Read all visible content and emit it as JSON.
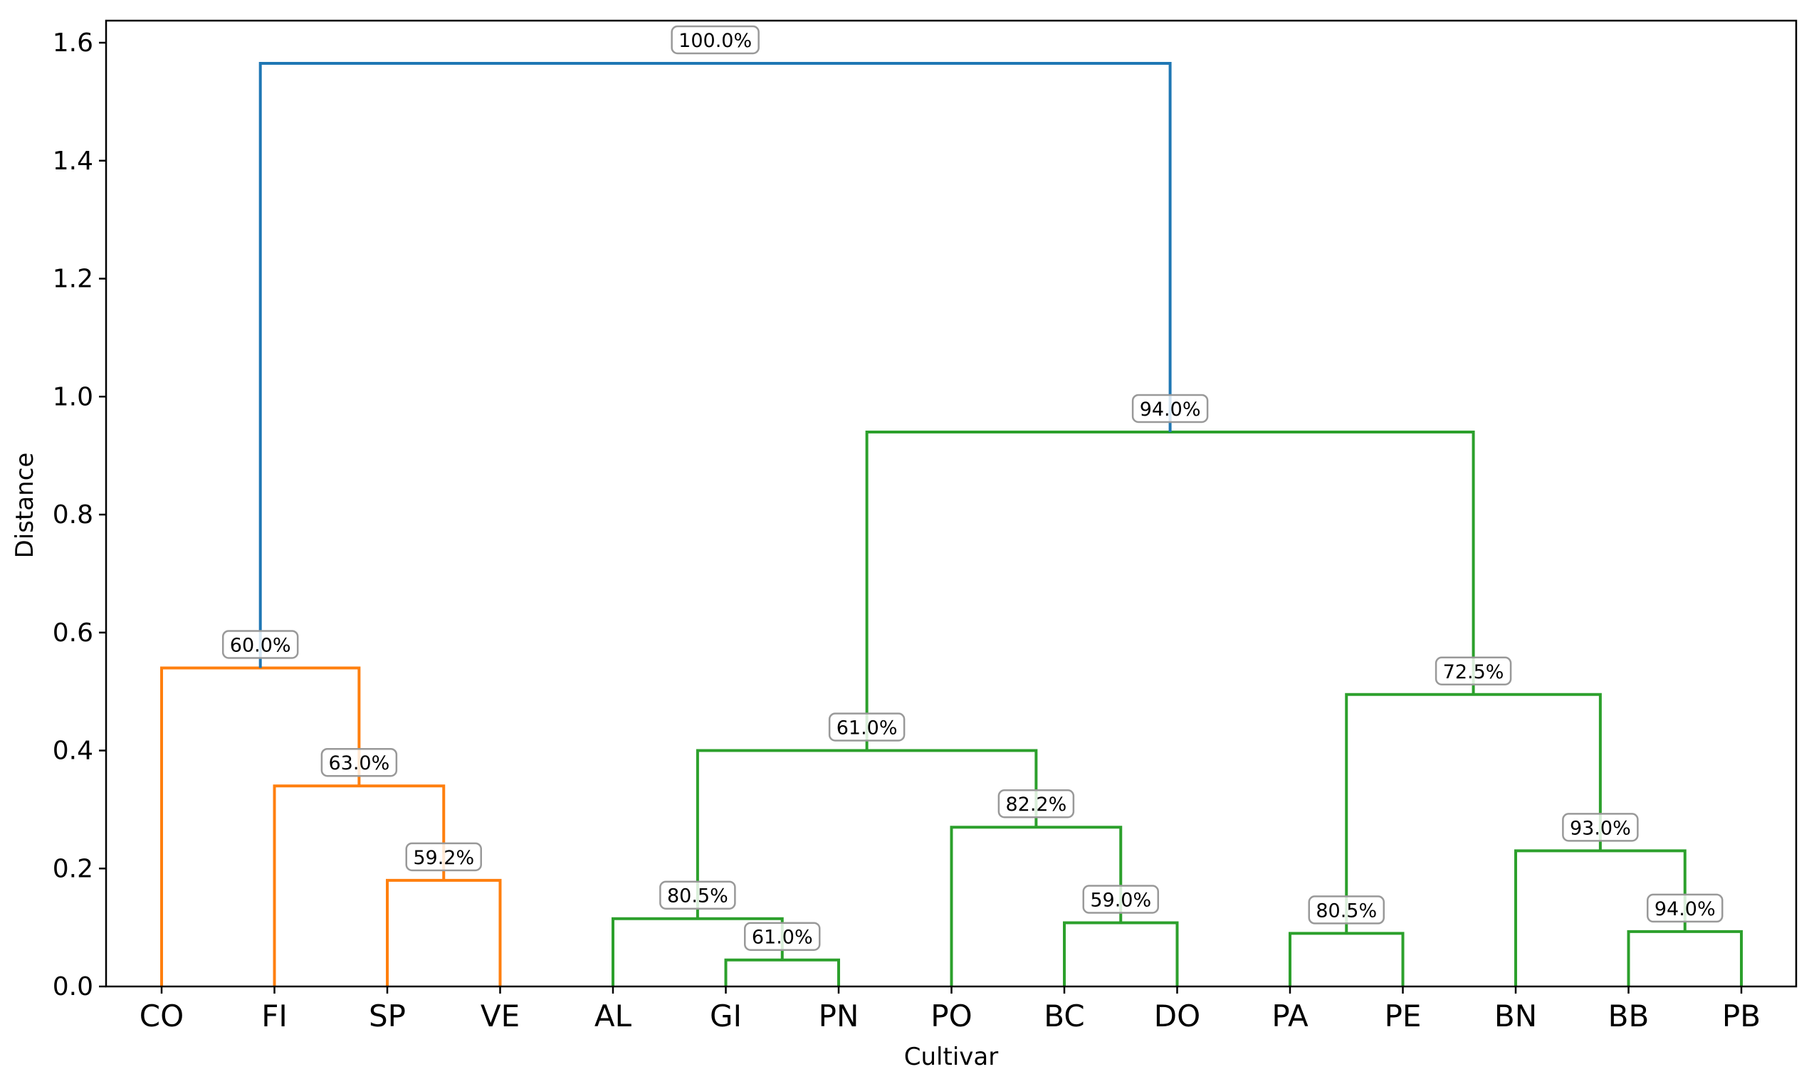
{
  "chart_data": {
    "type": "dendrogram",
    "title": "",
    "xlabel": "Cultivar",
    "ylabel": "Distance",
    "ylim": [
      0,
      1.64
    ],
    "yticks": [
      "0.0",
      "0.2",
      "0.4",
      "0.6",
      "0.8",
      "1.0",
      "1.2",
      "1.4",
      "1.6"
    ],
    "grid": false,
    "leaves": [
      "CO",
      "FI",
      "SP",
      "VE",
      "AL",
      "GI",
      "PN",
      "PO",
      "BC",
      "DO",
      "PA",
      "PE",
      "BN",
      "BB",
      "PB"
    ],
    "colors": {
      "top": "#1f77b4",
      "orange": "#ff7f0e",
      "green": "#2ca02c"
    },
    "clusters": [
      {
        "id": "c1",
        "left": "SP",
        "right": "VE",
        "height": 0.18,
        "label": "59.2%",
        "color": "orange"
      },
      {
        "id": "c2",
        "left": "FI",
        "right": "c1",
        "height": 0.34,
        "label": "63.0%",
        "color": "orange"
      },
      {
        "id": "c3",
        "left": "CO",
        "right": "c2",
        "height": 0.54,
        "label": "60.0%",
        "color": "orange"
      },
      {
        "id": "c4",
        "left": "GI",
        "right": "PN",
        "height": 0.045,
        "label": "61.0%",
        "color": "green"
      },
      {
        "id": "c5",
        "left": "AL",
        "right": "c4",
        "height": 0.115,
        "label": "80.5%",
        "color": "green"
      },
      {
        "id": "c6",
        "left": "BC",
        "right": "DO",
        "height": 0.108,
        "label": "59.0%",
        "color": "green"
      },
      {
        "id": "c7",
        "left": "PO",
        "right": "c6",
        "height": 0.27,
        "label": "82.2%",
        "color": "green"
      },
      {
        "id": "c8",
        "left": "c5",
        "right": "c7",
        "height": 0.4,
        "label": "61.0%",
        "color": "green"
      },
      {
        "id": "c9",
        "left": "PA",
        "right": "PE",
        "height": 0.09,
        "label": "80.5%",
        "color": "green"
      },
      {
        "id": "c10",
        "left": "BB",
        "right": "PB",
        "height": 0.093,
        "label": "94.0%",
        "color": "green"
      },
      {
        "id": "c11",
        "left": "BN",
        "right": "c10",
        "height": 0.23,
        "label": "93.0%",
        "color": "green"
      },
      {
        "id": "c12",
        "left": "c9",
        "right": "c11",
        "height": 0.495,
        "label": "72.5%",
        "color": "green"
      },
      {
        "id": "c13",
        "left": "c8",
        "right": "c12",
        "height": 0.94,
        "label": "94.0%",
        "color": "green"
      },
      {
        "id": "c14",
        "left": "c3",
        "right": "c13",
        "height": 1.565,
        "label": "100.0%",
        "color": "top"
      }
    ]
  }
}
